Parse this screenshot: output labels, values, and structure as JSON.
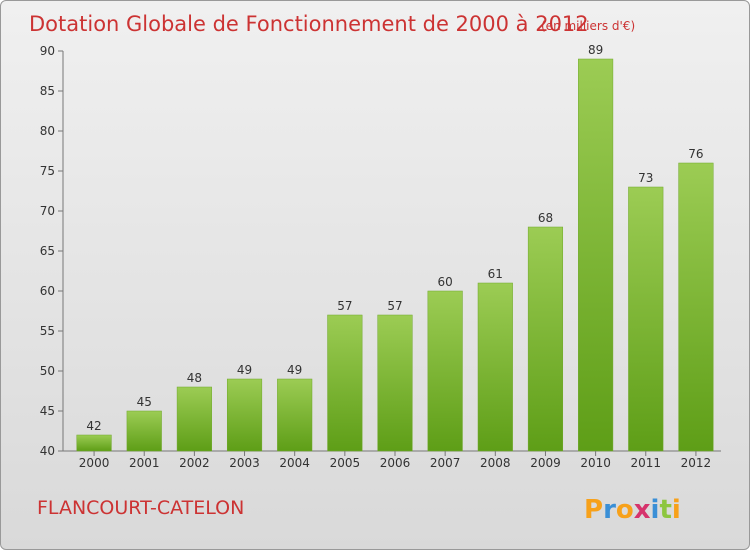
{
  "header": {
    "title": "Dotation Globale de Fonctionnement de 2000 à 2012",
    "unit_note": "(en milliers d'€)"
  },
  "footer": {
    "commune": "FLANCOURT-CATELON",
    "brand": "Proxiti",
    "brand_letters": [
      {
        "char": "P",
        "color": "#f7a11a"
      },
      {
        "char": "r",
        "color": "#3a8fd6"
      },
      {
        "char": "o",
        "color": "#f7a11a"
      },
      {
        "char": "x",
        "color": "#d6336c"
      },
      {
        "char": "i",
        "color": "#3a8fd6"
      },
      {
        "char": "t",
        "color": "#8dc63f"
      },
      {
        "char": "i",
        "color": "#f7a11a"
      }
    ]
  },
  "colors": {
    "bar_top": "#9ccc54",
    "bar_bottom": "#5e9e17",
    "title": "#cc3333",
    "grid_dash": "#bbbbbb"
  },
  "chart_data": {
    "type": "bar",
    "title": "Dotation Globale de Fonctionnement de 2000 à 2012",
    "subtitle": "(en milliers d'€)",
    "categories": [
      "2000",
      "2001",
      "2002",
      "2003",
      "2004",
      "2005",
      "2006",
      "2007",
      "2008",
      "2009",
      "2010",
      "2011",
      "2012"
    ],
    "values": [
      42,
      45,
      48,
      49,
      49,
      57,
      57,
      60,
      61,
      68,
      89,
      73,
      76
    ],
    "ylim": [
      40,
      90
    ],
    "yticks": [
      40,
      45,
      50,
      55,
      60,
      65,
      70,
      75,
      80,
      85,
      90
    ],
    "grid": false,
    "data_labels": true
  }
}
